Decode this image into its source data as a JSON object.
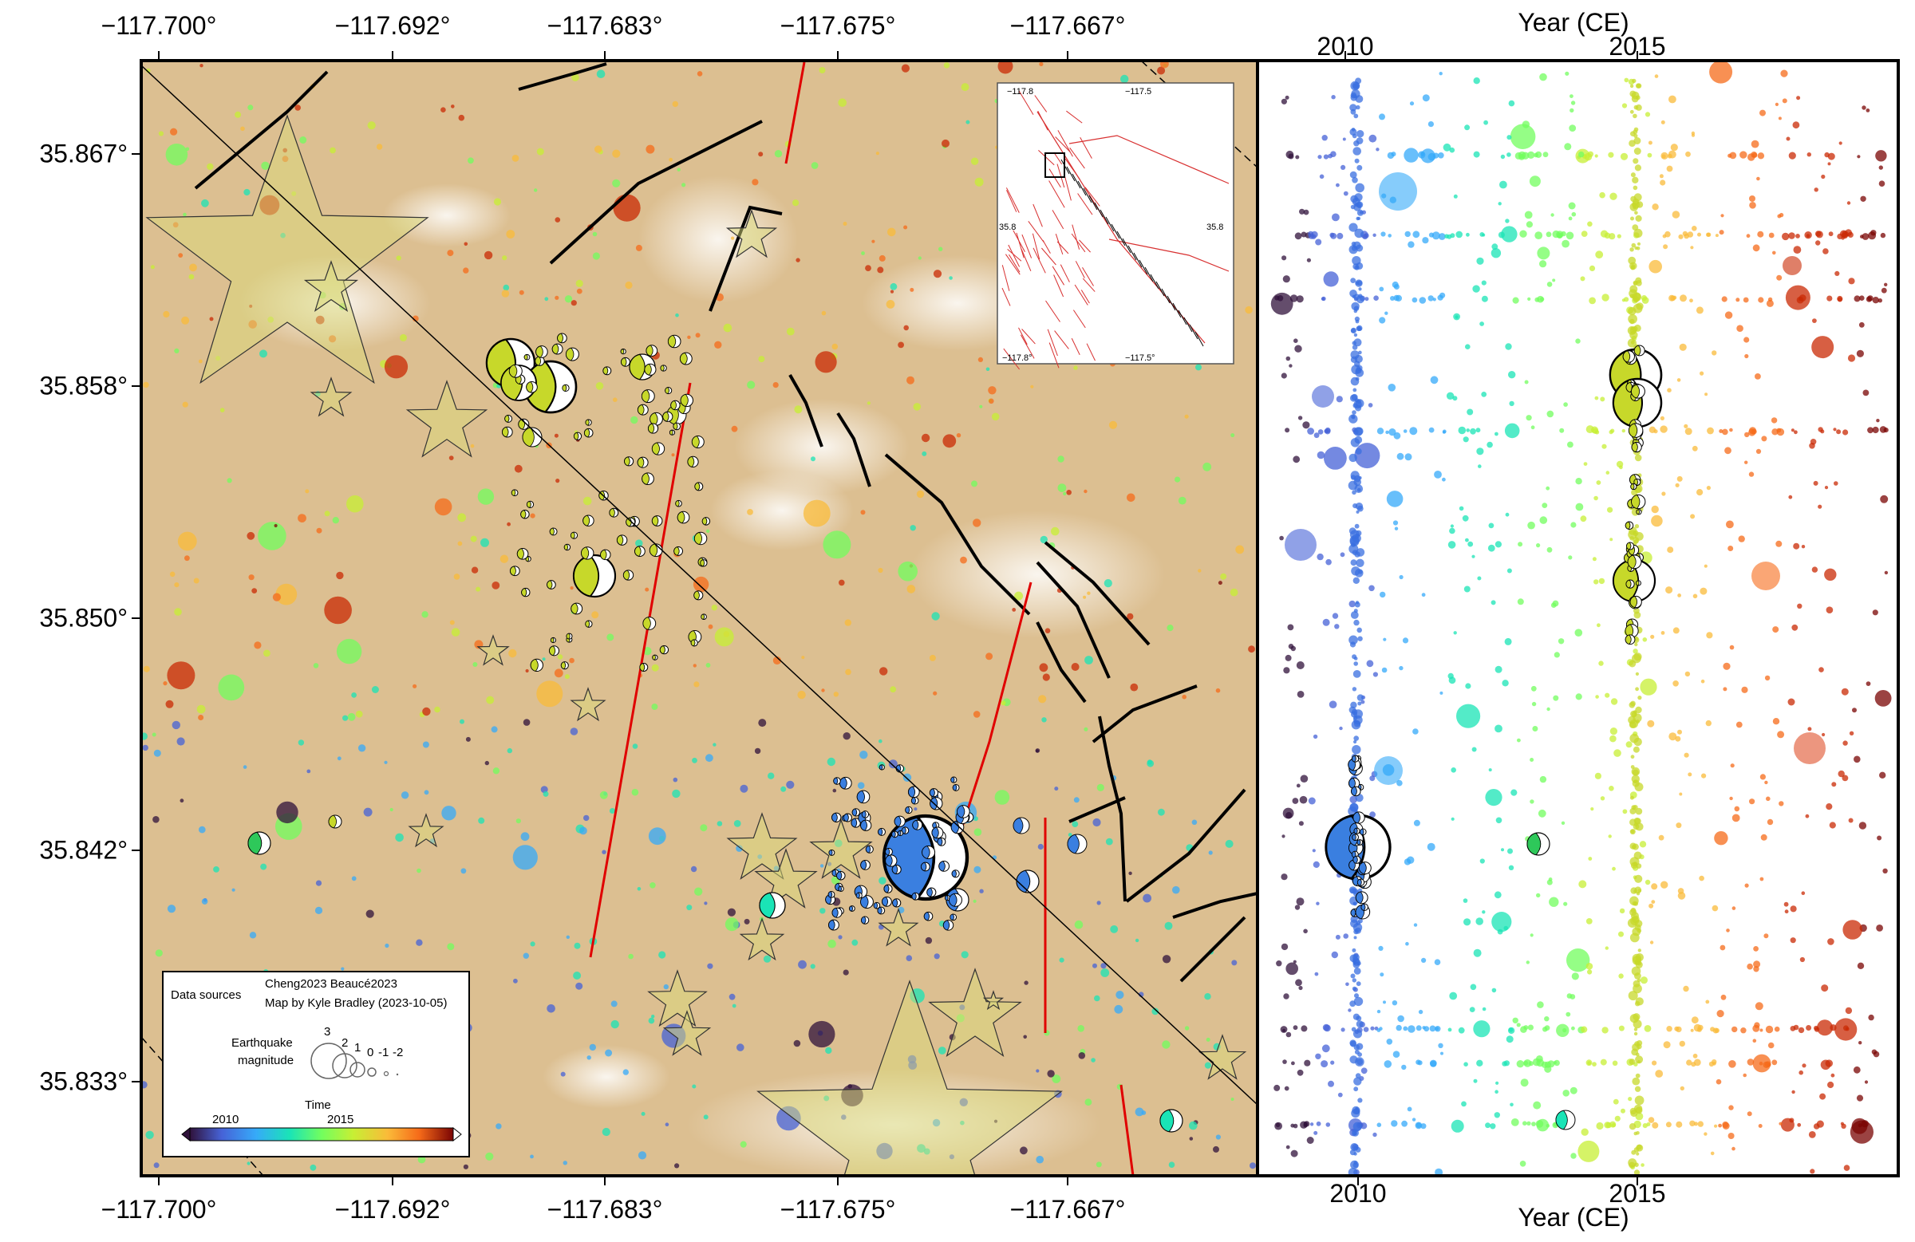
{
  "map": {
    "lon_ticks": [
      "−117.700°",
      "−117.692°",
      "−117.683°",
      "−117.675°",
      "−117.667°"
    ],
    "lat_ticks": [
      "35.867°",
      "35.858°",
      "35.850°",
      "35.842°",
      "35.833°"
    ],
    "background": "satellite imagery (desert)",
    "fault_colors": {
      "mapped": "#000000",
      "other": "#e00000"
    }
  },
  "inset": {
    "lon_labels": [
      "−117.8",
      "−117.5"
    ],
    "lat_labels": [
      "35.8",
      "35.8"
    ],
    "bottom_lon_labels": [
      "−117.8°",
      "−117.5°"
    ]
  },
  "timeline": {
    "axis_title_top": "Year (CE)",
    "axis_title_bottom": "Year (CE)",
    "top_ticks": [
      "2010",
      "2015"
    ],
    "bottom_ticks": [
      "2010",
      "2015"
    ]
  },
  "legend": {
    "data_sources_label": "Data sources",
    "sources": "Cheng2023 Beaucé2023",
    "credit": "Map by Kyle Bradley (2023-10-05)",
    "magnitude_label_line1": "Earthquake",
    "magnitude_label_line2": "magnitude",
    "magnitude_values": [
      "3",
      "2",
      "1",
      "0",
      "-1",
      "-2"
    ],
    "time_label": "Time",
    "time_ticks": [
      "2010",
      "2015"
    ],
    "colormap": [
      "#30123b",
      "#4662d7",
      "#36aaf9",
      "#1ae4b6",
      "#72fe5e",
      "#c7ef34",
      "#fabb39",
      "#f66b19",
      "#ca2a04",
      "#7a0403"
    ]
  }
}
